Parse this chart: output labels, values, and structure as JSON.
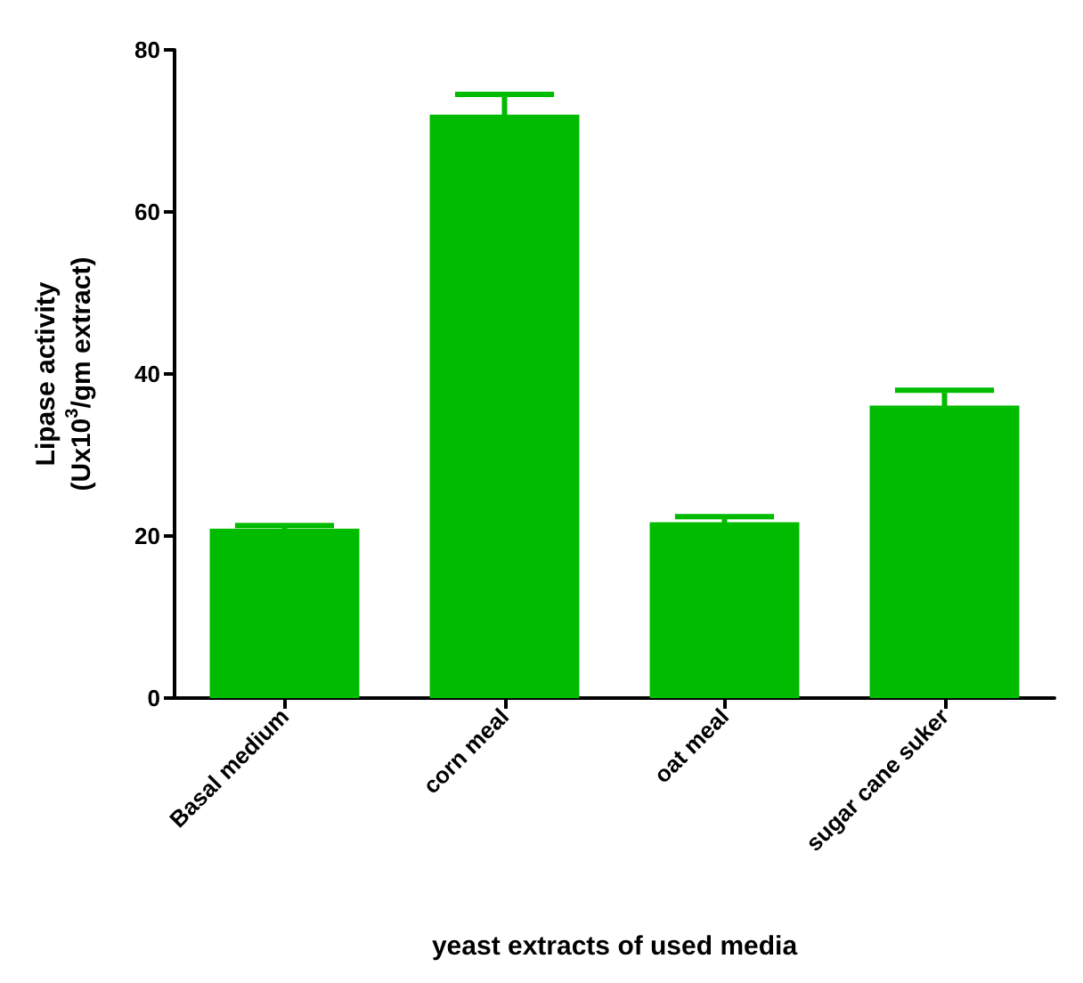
{
  "chart_data": {
    "type": "bar",
    "xlabel": "yeast extracts of used media",
    "ylabel": "Lipase activity\n(Ux10$^{3}$/gm extract)",
    "categories": [
      "Basal medium",
      "corn meal",
      "oat meal",
      "sugar cane suker"
    ],
    "values": [
      20.9,
      72.0,
      21.7,
      36.1
    ],
    "errors": [
      0.4,
      2.5,
      0.7,
      1.9
    ],
    "color": "#00bb00",
    "ylim": [
      0,
      80
    ],
    "yticks": [
      0,
      20,
      40,
      60,
      80
    ],
    "grid": false
  }
}
